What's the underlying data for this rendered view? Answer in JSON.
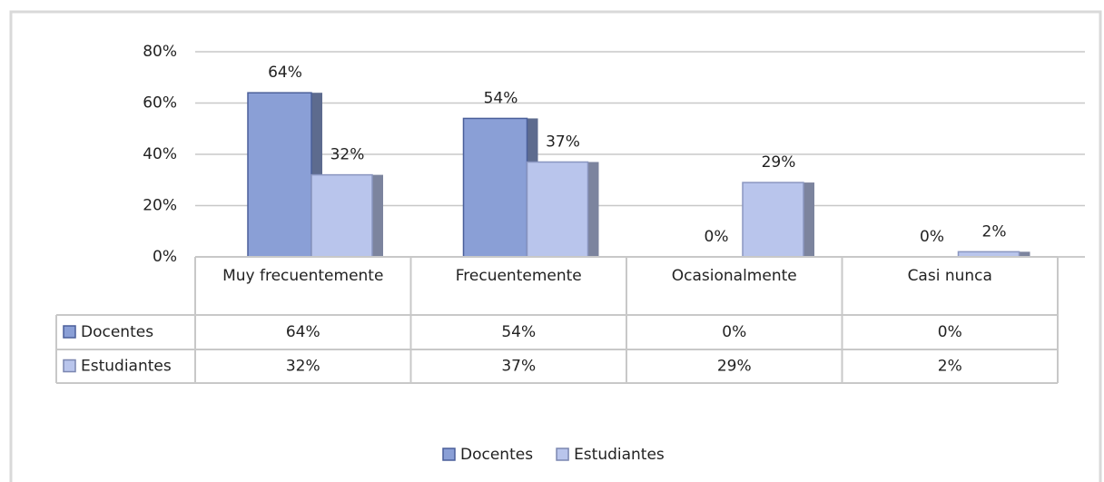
{
  "chart_data": {
    "type": "bar",
    "categories": [
      "Muy frecuentemente",
      "Frecuentemente",
      "Ocasionalmente",
      "Casi nunca"
    ],
    "series": [
      {
        "name": "Docentes",
        "color": "#8a9fd6",
        "values": [
          64,
          54,
          0,
          0
        ],
        "value_labels": [
          "64%",
          "54%",
          "0%",
          "0%"
        ]
      },
      {
        "name": "Estudiantes",
        "color": "#b9c5ec",
        "values": [
          32,
          37,
          29,
          2
        ],
        "value_labels": [
          "32%",
          "37%",
          "29%",
          "2%"
        ]
      }
    ],
    "ylim": [
      0,
      80
    ],
    "yticks": [
      {
        "value": 0,
        "label": "0%"
      },
      {
        "value": 20,
        "label": "20%"
      },
      {
        "value": 40,
        "label": "40%"
      },
      {
        "value": 60,
        "label": "60%"
      },
      {
        "value": 80,
        "label": "80%"
      }
    ],
    "grid": true,
    "data_table": true,
    "legend": "bottom"
  }
}
